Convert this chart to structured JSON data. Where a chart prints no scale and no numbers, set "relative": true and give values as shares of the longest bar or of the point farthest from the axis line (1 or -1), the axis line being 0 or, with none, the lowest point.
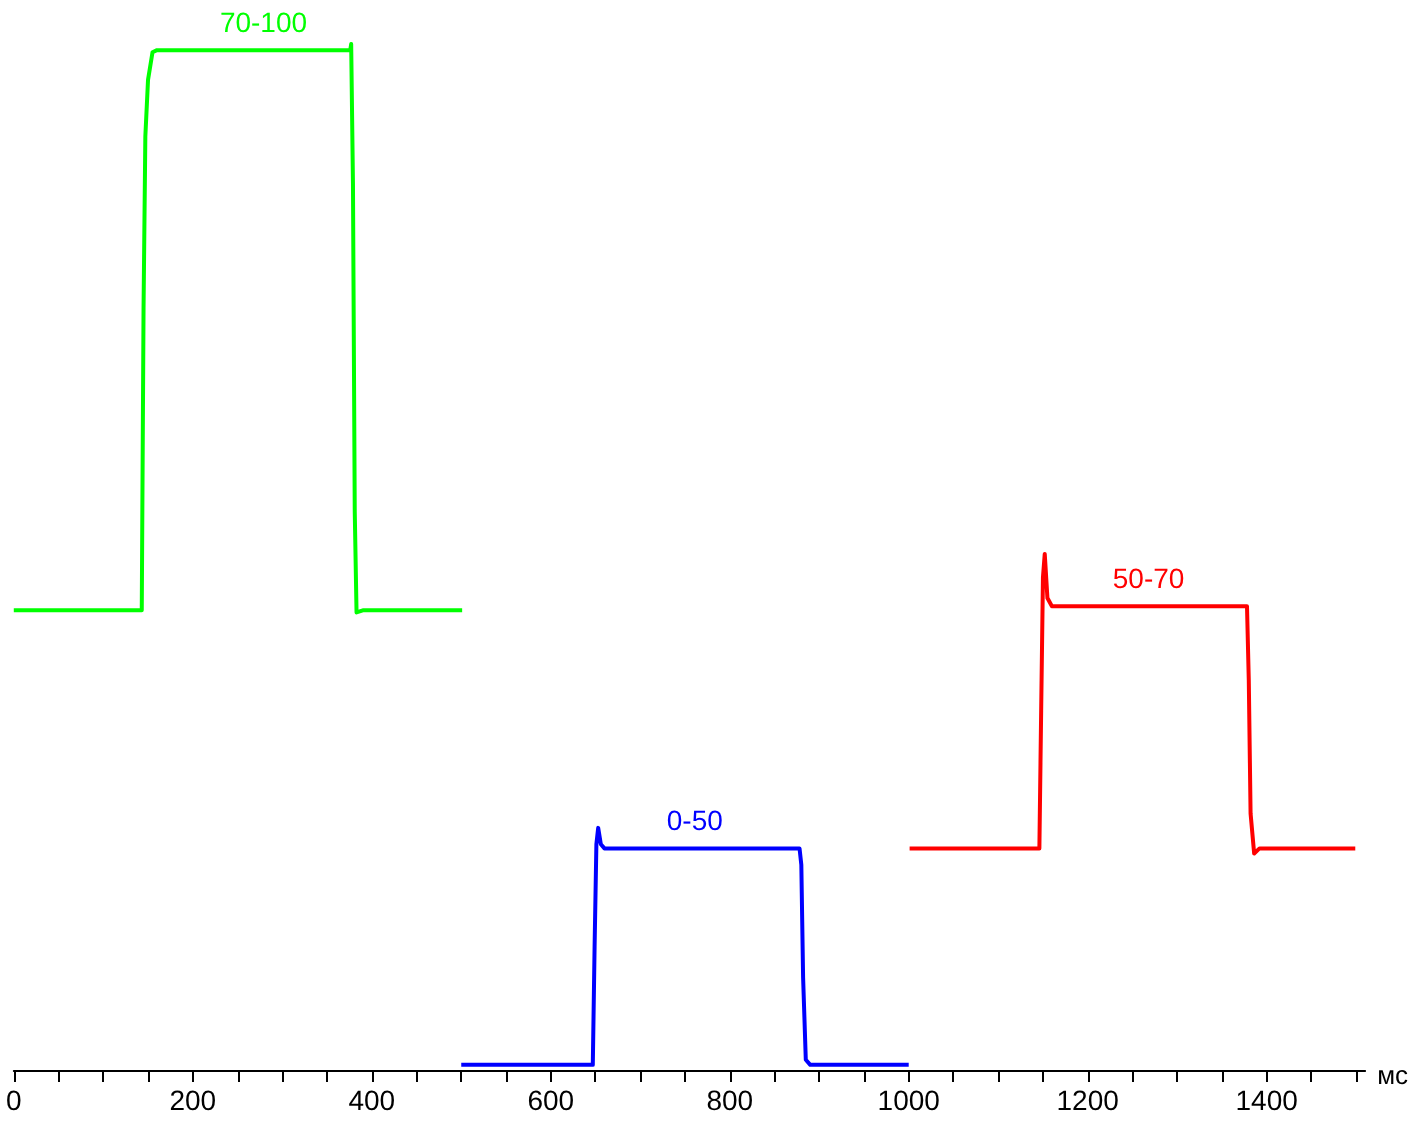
{
  "chart_data": {
    "type": "line",
    "relative": true,
    "xlabel": "мс",
    "xlim": [
      0,
      1510
    ],
    "xticks": [
      0,
      {
        "value": 50,
        "label": null
      },
      {
        "value": 100,
        "label": null
      },
      {
        "value": 150,
        "label": null
      },
      200,
      {
        "value": 250,
        "label": null
      },
      {
        "value": 300,
        "label": null
      },
      {
        "value": 350,
        "label": null
      },
      400,
      {
        "value": 450,
        "label": null
      },
      {
        "value": 500,
        "label": null
      },
      {
        "value": 550,
        "label": null
      },
      600,
      {
        "value": 650,
        "label": null
      },
      {
        "value": 700,
        "label": null
      },
      {
        "value": 750,
        "label": null
      },
      800,
      {
        "value": 850,
        "label": null
      },
      {
        "value": 900,
        "label": null
      },
      {
        "value": 950,
        "label": null
      },
      1000,
      {
        "value": 1050,
        "label": null
      },
      {
        "value": 1100,
        "label": null
      },
      {
        "value": 1150,
        "label": null
      },
      1200,
      {
        "value": 1250,
        "label": null
      },
      {
        "value": 1300,
        "label": null
      },
      {
        "value": 1350,
        "label": null
      },
      1400,
      {
        "value": 1450,
        "label": null
      },
      {
        "value": 1500,
        "label": null
      }
    ],
    "grid": false,
    "marker": "none",
    "line_style": "solid",
    "series": [
      {
        "color": "#00ff00",
        "x": [
          0,
          143,
          145,
          147,
          150,
          155,
          160,
          376,
          377,
          379,
          381,
          383,
          390,
          501
        ],
        "values": [
          0.448,
          0.448,
          0.743,
          0.91,
          0.965,
          0.992,
          0.994,
          0.994,
          1,
          0.864,
          0.544,
          0.446,
          0.448,
          0.448
        ]
      },
      {
        "color": "#0000ff",
        "x": [
          500,
          647,
          649,
          651,
          653,
          656,
          660,
          878,
          880,
          882,
          885,
          890,
          1000
        ],
        "values": [
          0.005,
          0.005,
          0.12,
          0.22,
          0.236,
          0.22,
          0.216,
          0.216,
          0.2,
          0.09,
          0.01,
          0.005,
          0.005
        ]
      },
      {
        "color": "#ff0000",
        "x": [
          1001,
          1146,
          1148,
          1150,
          1152,
          1155,
          1160,
          1378,
          1380,
          1382,
          1386,
          1392,
          1499
        ],
        "values": [
          0.216,
          0.216,
          0.35,
          0.48,
          0.503,
          0.46,
          0.452,
          0.452,
          0.38,
          0.25,
          0.211,
          0.216,
          0.216
        ]
      }
    ],
    "annotations": [
      {
        "text": "70-100",
        "x": 279,
        "y": 0.994
      },
      {
        "text": "0-50",
        "x": 761,
        "y": 0.216
      },
      {
        "text": "50-70",
        "x": 1268,
        "y": 0.452
      }
    ]
  }
}
